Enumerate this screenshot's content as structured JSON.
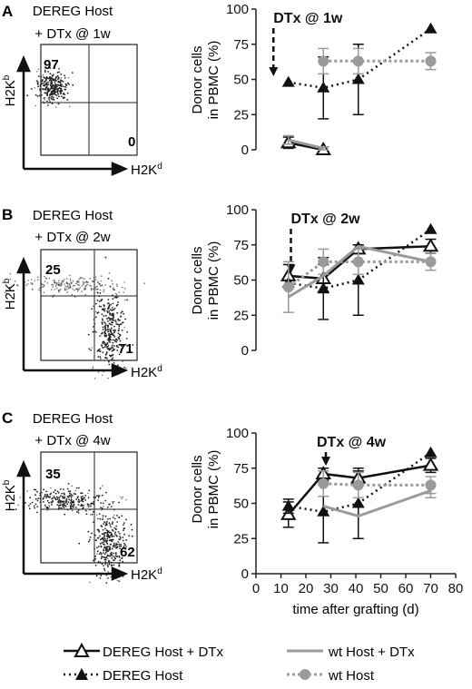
{
  "panels": [
    {
      "letter": "A",
      "flow": {
        "title_line1": "DEREG Host",
        "title_line2": "+ DTx @ 1w",
        "y_axis_label": "H2K",
        "y_axis_sup": "b",
        "x_axis_label": "H2K",
        "x_axis_sup": "d",
        "upper_left_pct": "97",
        "lower_right_pct": "0",
        "population_shares": {
          "h2kb_positive": 97,
          "h2kd_positive": 0
        }
      },
      "annotation": "DTx @ 1w",
      "annotation_day": 7
    },
    {
      "letter": "B",
      "flow": {
        "title_line1": "DEREG Host",
        "title_line2": "+ DTx @ 2w",
        "y_axis_label": "H2K",
        "y_axis_sup": "b",
        "x_axis_label": "H2K",
        "x_axis_sup": "d",
        "upper_left_pct": "25",
        "lower_right_pct": "71",
        "population_shares": {
          "h2kb_positive": 25,
          "h2kd_positive": 71
        }
      },
      "annotation": "DTx @ 2w",
      "annotation_day": 14
    },
    {
      "letter": "C",
      "flow": {
        "title_line1": "DEREG Host",
        "title_line2": "+ DTx @ 4w",
        "y_axis_label": "H2K",
        "y_axis_sup": "b",
        "x_axis_label": "H2K",
        "x_axis_sup": "d",
        "upper_left_pct": "35",
        "lower_right_pct": "62",
        "population_shares": {
          "h2kb_positive": 35,
          "h2kd_positive": 62
        }
      },
      "annotation": "DTx @ 4w",
      "annotation_day": 28
    }
  ],
  "legend": {
    "dereg_dtx": "DEREG Host + DTx",
    "dereg": "DEREG Host",
    "wt_dtx": "wt Host + DTx",
    "wt": "wt Host"
  },
  "colors": {
    "black": "#111111",
    "gray": "#9a9a9a",
    "dot_gray": "#222222"
  },
  "chart_data": [
    {
      "type": "line",
      "panel": "A",
      "ylabel_line1": "Donor cells",
      "ylabel_line2": "in PBMC (%)",
      "xlabel": "",
      "xlim": [
        0,
        80
      ],
      "ylim": [
        0,
        100
      ],
      "yticks": [
        0,
        25,
        50,
        75,
        100
      ],
      "show_x_axis": false,
      "series": [
        {
          "name": "DEREG Host + DTx",
          "style": "black-solid-open-triangle",
          "x": [
            13,
            27
          ],
          "y": [
            5,
            0
          ],
          "err": [
            4,
            2
          ]
        },
        {
          "name": "DEREG Host",
          "style": "black-dotted-filled-triangle",
          "x": [
            13,
            27,
            41,
            70
          ],
          "y": [
            48,
            44,
            50,
            86
          ],
          "err": [
            0,
            22,
            25,
            0
          ]
        },
        {
          "name": "wt Host + DTx",
          "style": "gray-solid",
          "x": [
            13,
            27
          ],
          "y": [
            7,
            1
          ],
          "err": [
            3,
            1
          ]
        },
        {
          "name": "wt Host",
          "style": "gray-dotted-filled-circle",
          "x": [
            27,
            41,
            70
          ],
          "y": [
            63,
            63,
            63
          ],
          "err": [
            9,
            9,
            6
          ]
        }
      ]
    },
    {
      "type": "line",
      "panel": "B",
      "ylabel_line1": "Donor cells",
      "ylabel_line2": "in PBMC (%)",
      "xlabel": "",
      "xlim": [
        0,
        80
      ],
      "ylim": [
        0,
        100
      ],
      "yticks": [
        0,
        25,
        50,
        75,
        100
      ],
      "show_x_axis": false,
      "series": [
        {
          "name": "DEREG Host + DTx",
          "style": "black-solid-open-triangle",
          "x": [
            13,
            27,
            41,
            70
          ],
          "y": [
            53,
            51,
            72,
            74
          ],
          "err": [
            8,
            10,
            3,
            5
          ]
        },
        {
          "name": "DEREG Host",
          "style": "black-dotted-filled-triangle",
          "x": [
            13,
            27,
            41,
            70
          ],
          "y": [
            48,
            44,
            50,
            86
          ],
          "err": [
            0,
            22,
            25,
            0
          ]
        },
        {
          "name": "wt Host + DTx",
          "style": "gray-solid",
          "x": [
            13,
            27,
            41,
            70
          ],
          "y": [
            38,
            53,
            74,
            63
          ],
          "err": [
            0,
            0,
            0,
            0
          ]
        },
        {
          "name": "wt Host",
          "style": "gray-dotted-filled-circle",
          "x": [
            13,
            27,
            41,
            70
          ],
          "y": [
            45,
            63,
            63,
            63
          ],
          "err": [
            18,
            9,
            9,
            6
          ]
        }
      ]
    },
    {
      "type": "line",
      "panel": "C",
      "ylabel_line1": "Donor cells",
      "ylabel_line2": "in PBMC (%)",
      "xlabel": "time after grafting (d)",
      "xlim": [
        0,
        80
      ],
      "ylim": [
        0,
        100
      ],
      "yticks": [
        0,
        25,
        50,
        75,
        100
      ],
      "xticks": [
        0,
        10,
        20,
        30,
        40,
        50,
        60,
        70,
        80
      ],
      "show_x_axis": true,
      "series": [
        {
          "name": "DEREG Host + DTx",
          "style": "black-solid-open-triangle",
          "x": [
            13,
            27,
            41,
            70
          ],
          "y": [
            42,
            71,
            68,
            77
          ],
          "err": [
            9,
            4,
            5,
            5
          ]
        },
        {
          "name": "DEREG Host",
          "style": "black-dotted-filled-triangle",
          "x": [
            13,
            27,
            41,
            70
          ],
          "y": [
            48,
            44,
            50,
            86
          ],
          "err": [
            5,
            22,
            25,
            0
          ]
        },
        {
          "name": "wt Host + DTx",
          "style": "gray-solid",
          "x": [
            27,
            41,
            70
          ],
          "y": [
            48,
            41,
            59
          ],
          "err": [
            0,
            0,
            5
          ]
        },
        {
          "name": "wt Host",
          "style": "gray-dotted-filled-circle",
          "x": [
            27,
            41,
            70
          ],
          "y": [
            64,
            63,
            63
          ],
          "err": [
            9,
            9,
            6
          ]
        }
      ]
    }
  ]
}
